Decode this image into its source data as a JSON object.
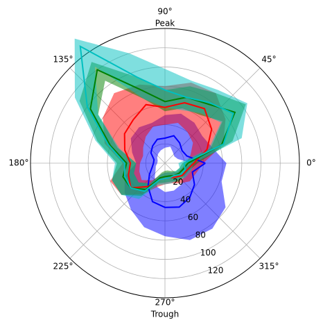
{
  "chart_data": {
    "type": "polar",
    "theta_ticks_deg": [
      0,
      45,
      90,
      135,
      180,
      225,
      270,
      315
    ],
    "angle_labels": [
      "0°",
      "45°",
      "90°",
      "135°",
      "180°",
      "225°",
      "270°",
      "315°"
    ],
    "axis_annotations": {
      "top": "Peak",
      "bottom": "Trough"
    },
    "r_ticks": [
      20,
      40,
      60,
      80,
      100,
      120
    ],
    "r_tick_labels": [
      "20",
      "40",
      "60",
      "80",
      "100",
      "120"
    ],
    "rlim": [
      0,
      140
    ],
    "r_label_angle_deg": -67,
    "grid": true,
    "theta_deg": [
      0,
      18,
      36,
      54,
      72,
      90,
      108,
      126,
      144,
      162,
      180,
      198,
      216,
      234,
      252,
      270,
      288,
      306,
      324,
      342
    ],
    "series": [
      {
        "color": "#0000ff",
        "mean": [
          42,
          24,
          22,
          26,
          30,
          26,
          26,
          22,
          18,
          12,
          12,
          14,
          20,
          30,
          42,
          46,
          48,
          44,
          38,
          30
        ],
        "lower": [
          28,
          14,
          12,
          14,
          18,
          16,
          14,
          12,
          10,
          8,
          8,
          10,
          12,
          18,
          26,
          30,
          30,
          28,
          24,
          20
        ],
        "upper": [
          64,
          52,
          48,
          52,
          54,
          50,
          44,
          46,
          44,
          36,
          30,
          44,
          52,
          60,
          70,
          76,
          84,
          84,
          78,
          62
        ]
      },
      {
        "color": "#ff0000",
        "mean": [
          30,
          46,
          60,
          70,
          66,
          58,
          64,
          56,
          52,
          44,
          36,
          40,
          44,
          30,
          18,
          16,
          16,
          18,
          22,
          24
        ],
        "lower": [
          22,
          28,
          36,
          40,
          44,
          40,
          40,
          34,
          28,
          24,
          26,
          28,
          30,
          22,
          12,
          10,
          10,
          12,
          16,
          18
        ],
        "upper": [
          40,
          64,
          78,
          90,
          88,
          80,
          86,
          90,
          80,
          66,
          44,
          60,
          56,
          40,
          26,
          22,
          22,
          26,
          32,
          34
        ]
      },
      {
        "color": "#008000",
        "mean": [
          24,
          62,
          90,
          76,
          72,
          64,
          80,
          120,
          96,
          60,
          40,
          46,
          44,
          34,
          16,
          14,
          14,
          16,
          18,
          20
        ],
        "lower": [
          18,
          50,
          74,
          62,
          60,
          54,
          70,
          106,
          86,
          52,
          30,
          34,
          34,
          26,
          10,
          8,
          8,
          10,
          14,
          16
        ],
        "upper": [
          34,
          74,
          104,
          90,
          84,
          76,
          94,
          130,
          110,
          74,
          50,
          58,
          56,
          42,
          22,
          20,
          20,
          24,
          24,
          26
        ]
      },
      {
        "color": "#00bfbf",
        "mean": [
          20,
          64,
          88,
          78,
          72,
          76,
          94,
          150,
          100,
          62,
          42,
          44,
          44,
          36,
          18,
          16,
          16,
          16,
          20,
          22
        ],
        "lower": [
          14,
          48,
          72,
          64,
          58,
          58,
          70,
          124,
          86,
          50,
          30,
          34,
          34,
          26,
          12,
          10,
          10,
          12,
          14,
          16
        ],
        "upper": [
          30,
          84,
          106,
          94,
          90,
          98,
          120,
          160,
          116,
          76,
          52,
          58,
          56,
          46,
          24,
          22,
          22,
          22,
          26,
          28
        ]
      }
    ]
  }
}
